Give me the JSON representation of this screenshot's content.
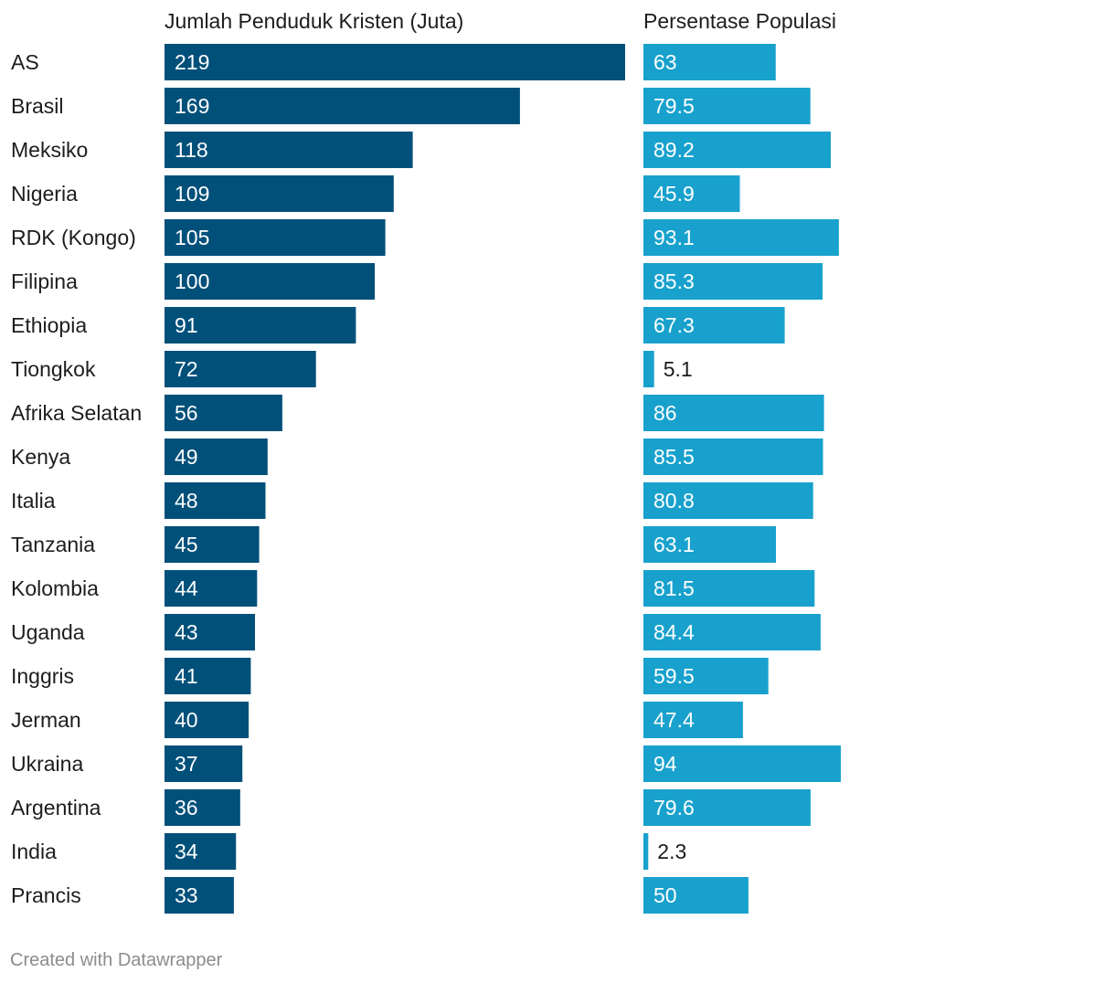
{
  "chart_data": {
    "type": "bar",
    "categories": [
      "AS",
      "Brasil",
      "Meksiko",
      "Nigeria",
      "RDK (Kongo)",
      "Filipina",
      "Ethiopia",
      "Tiongkok",
      "Afrika Selatan",
      "Kenya",
      "Italia",
      "Tanzania",
      "Kolombia",
      "Uganda",
      "Inggris",
      "Jerman",
      "Ukraina",
      "Argentina",
      "India",
      "Prancis"
    ],
    "series": [
      {
        "name": "Jumlah Penduduk Kristen (Juta)",
        "values": [
          219,
          169,
          118,
          109,
          105,
          100,
          91,
          72,
          56,
          49,
          48,
          45,
          44,
          43,
          41,
          40,
          37,
          36,
          34,
          33
        ],
        "labels": [
          "219",
          "169",
          "118",
          "109",
          "105",
          "100",
          "91",
          "72",
          "56",
          "49",
          "48",
          "45",
          "44",
          "43",
          "41",
          "40",
          "37",
          "36",
          "34",
          "33"
        ],
        "max": 219,
        "color": "#00507a"
      },
      {
        "name": "Persentase Populasi",
        "values": [
          63,
          79.5,
          89.2,
          45.9,
          93.1,
          85.3,
          67.3,
          5.1,
          86,
          85.5,
          80.8,
          63.1,
          81.5,
          84.4,
          59.5,
          47.4,
          94,
          79.6,
          2.3,
          50
        ],
        "labels": [
          "63",
          "79.5",
          "89.2",
          "45.9",
          "93.1",
          "85.3",
          "67.3",
          "5.1",
          "86",
          "85.5",
          "80.8",
          "63.1",
          "81.5",
          "84.4",
          "59.5",
          "47.4",
          "94",
          "79.6",
          "2.3",
          "50"
        ],
        "max": 94,
        "color": "#18a1cd"
      }
    ]
  },
  "footer": {
    "credit": "Created with Datawrapper"
  }
}
